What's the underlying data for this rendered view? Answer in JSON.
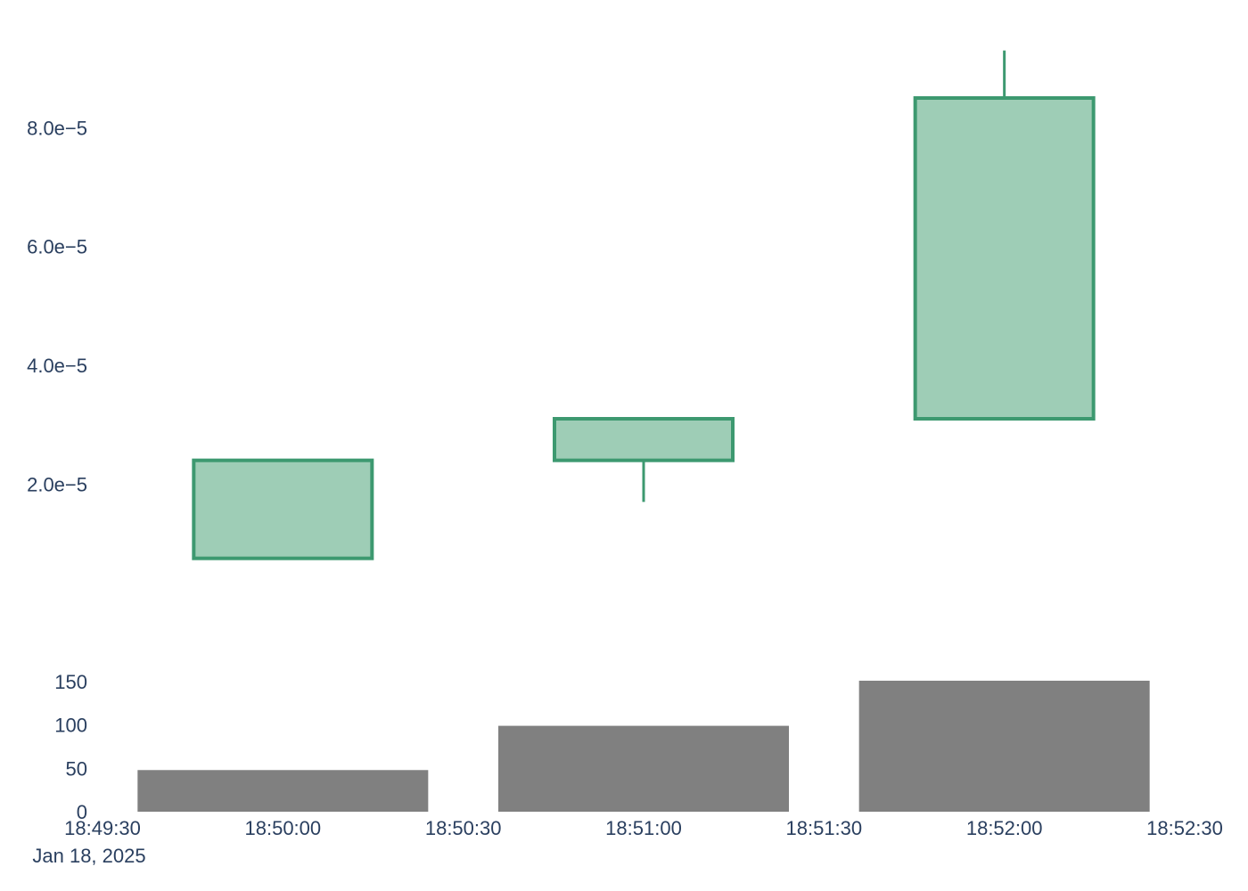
{
  "chart_data": [
    {
      "type": "candlestick",
      "x": [
        "18:50:00",
        "18:51:00",
        "18:52:00"
      ],
      "ohlc": [
        {
          "open": 7.5e-06,
          "high": 2.4e-05,
          "low": 7.5e-06,
          "close": 2.4e-05
        },
        {
          "open": 2.4e-05,
          "high": 3.1e-05,
          "low": 1.7e-05,
          "close": 3.1e-05
        },
        {
          "open": 3.1e-05,
          "high": 9.3e-05,
          "low": 3.1e-05,
          "close": 8.5e-05
        }
      ],
      "increasing_color": "#3d9970",
      "ylim": [
        -2e-06,
        0.0001
      ],
      "yticks": [
        "2.0e−5",
        "4.0e−5",
        "6.0e−5",
        "8.0e−5"
      ],
      "ytick_values": [
        2e-05,
        4e-05,
        6e-05,
        8e-05
      ]
    },
    {
      "type": "bar",
      "x": [
        "18:50:00",
        "18:51:00",
        "18:52:00"
      ],
      "values": [
        48,
        99,
        151
      ],
      "color": "#808080",
      "ylim": [
        0,
        152
      ],
      "yticks": [
        "0",
        "50",
        "100",
        "150"
      ],
      "ytick_values": [
        0,
        50,
        100,
        150
      ]
    }
  ],
  "x_axis": {
    "range": [
      "18:49:30",
      "18:52:30"
    ],
    "ticks": [
      "18:49:30",
      "18:50:00",
      "18:50:30",
      "18:51:00",
      "18:51:30",
      "18:52:00",
      "18:52:30"
    ],
    "date_label": "Jan 18, 2025"
  }
}
